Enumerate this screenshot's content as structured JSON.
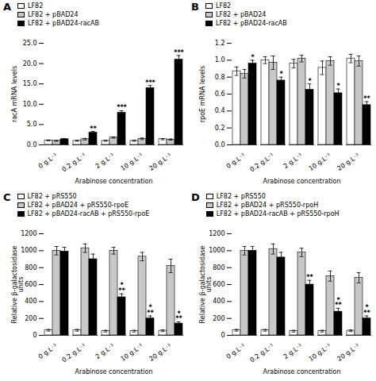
{
  "chart_data": [
    {
      "type": "bar",
      "title": "A",
      "xlabel": "Arabinose concentration",
      "ylabel": "racA mRNA levels",
      "categories": [
        "0 g.L⁻¹",
        "0.2 g.L⁻¹",
        "2 g.L⁻¹",
        "10 g.L⁻¹",
        "20 g.L⁻¹"
      ],
      "series": [
        {
          "name": "LF82",
          "color": "white",
          "values": [
            1.1,
            1.0,
            1.0,
            1.0,
            1.4
          ],
          "errors": [
            0.1,
            0.1,
            0.1,
            0.1,
            0.15
          ]
        },
        {
          "name": "LF82 + pBAD24",
          "color": "#c8c8c8",
          "values": [
            1.0,
            1.4,
            1.8,
            1.5,
            1.3
          ],
          "errors": [
            0.1,
            0.2,
            0.15,
            0.2,
            0.15
          ]
        },
        {
          "name": "LF82 + pBAD24-racAB",
          "color": "black",
          "values": [
            1.4,
            3.0,
            7.9,
            14.0,
            21.0
          ],
          "errors": [
            0.15,
            0.3,
            0.5,
            0.6,
            1.0
          ]
        }
      ],
      "ylim": [
        0,
        25
      ],
      "yticks": [
        {
          "value": 0,
          "label": "0.0"
        },
        {
          "value": 5,
          "label": "5.0"
        },
        {
          "value": 10,
          "label": "10.0"
        },
        {
          "value": 15,
          "label": "15.0"
        },
        {
          "value": 20,
          "label": "20.0"
        },
        {
          "value": 25,
          "label": "25.0"
        }
      ],
      "annotations": [
        {
          "category": "0.2 g.L⁻¹",
          "series": "LF82 + pBAD24-racAB",
          "text": "**"
        },
        {
          "category": "2 g.L⁻¹",
          "series": "LF82 + pBAD24-racAB",
          "text": "***"
        },
        {
          "category": "10 g.L⁻¹",
          "series": "LF82 + pBAD24-racAB",
          "text": "***"
        },
        {
          "category": "20 g.L⁻¹",
          "series": "LF82 + pBAD24-racAB",
          "text": "***"
        }
      ]
    },
    {
      "type": "bar",
      "title": "B",
      "xlabel": "Arabinose concentration",
      "ylabel": "rpoE mRNA levels",
      "categories": [
        "0 g.L⁻¹",
        "0.2 g.L⁻¹",
        "2 g.L⁻¹",
        "10 g.L⁻¹",
        "20 g.L⁻¹"
      ],
      "series": [
        {
          "name": "LF82",
          "color": "white",
          "values": [
            0.87,
            1.0,
            0.96,
            0.91,
            1.02
          ],
          "errors": [
            0.05,
            0.04,
            0.05,
            0.08,
            0.05
          ]
        },
        {
          "name": "LF82 + pBAD24",
          "color": "#c8c8c8",
          "values": [
            0.84,
            0.97,
            1.02,
            0.99,
            0.99
          ],
          "errors": [
            0.05,
            0.08,
            0.04,
            0.05,
            0.06
          ]
        },
        {
          "name": "LF82 + pBAD24-racAB",
          "color": "black",
          "values": [
            0.96,
            0.76,
            0.65,
            0.61,
            0.47
          ],
          "errors": [
            0.04,
            0.04,
            0.07,
            0.05,
            0.04
          ]
        }
      ],
      "ylim": [
        0,
        1.2
      ],
      "yticks": [
        {
          "value": 0,
          "label": "0.0"
        },
        0.2,
        0.4,
        0.6,
        0.8,
        {
          "value": 1,
          "label": "1.0"
        },
        1.2
      ],
      "annotations": [
        {
          "category": "0 g.L⁻¹",
          "series": "LF82 + pBAD24-racAB",
          "text": "*"
        },
        {
          "category": "0.2 g.L⁻¹",
          "series": "LF82 + pBAD24-racAB",
          "text": "*"
        },
        {
          "category": "2 g.L⁻¹",
          "series": "LF82 + pBAD24-racAB",
          "text": "*"
        },
        {
          "category": "10 g.L⁻¹",
          "series": "LF82 + pBAD24-racAB",
          "text": "*"
        },
        {
          "category": "20 g.L⁻¹",
          "series": "LF82 + pBAD24-racAB",
          "text": "**"
        }
      ]
    },
    {
      "type": "bar",
      "title": "C",
      "xlabel": "Arabinose concentration",
      "ylabel": "Relative β-galactosidase\nunits",
      "categories": [
        "0 g.L⁻¹",
        "0.2 g.L⁻¹",
        "2 g.L⁻¹",
        "10 g.L⁻¹",
        "20 g.L⁻¹"
      ],
      "series": [
        {
          "name": "LF82 + pRS550",
          "color": "white",
          "values": [
            60,
            60,
            50,
            50,
            55
          ],
          "errors": [
            10,
            10,
            10,
            10,
            10
          ]
        },
        {
          "name": "LF82 + pBAD24 + pRS550-rpoE",
          "color": "#c8c8c8",
          "values": [
            1000,
            1030,
            1000,
            930,
            820
          ],
          "errors": [
            50,
            50,
            40,
            50,
            80
          ]
        },
        {
          "name": "LF82 + pBAD24-racAB + pRS550-rpoE",
          "color": "black",
          "values": [
            990,
            900,
            450,
            200,
            140
          ],
          "errors": [
            50,
            60,
            40,
            30,
            20
          ]
        }
      ],
      "ylim": [
        0,
        1200
      ],
      "yticks": [
        0,
        200,
        400,
        600,
        800,
        1000,
        1200
      ],
      "annotations": [
        {
          "category": "2 g.L⁻¹",
          "series": "LF82 + pBAD24-racAB + pRS550-rpoE",
          "text": "*\n**"
        },
        {
          "category": "10 g.L⁻¹",
          "series": "LF82 + pBAD24-racAB + pRS550-rpoE",
          "text": "*\n**"
        },
        {
          "category": "20 g.L⁻¹",
          "series": "LF82 + pBAD24-racAB + pRS550-rpoE",
          "text": "*\n**"
        }
      ]
    },
    {
      "type": "bar",
      "title": "D",
      "xlabel": "Arabinose concentration",
      "ylabel": "Relative β-galactosidase\nunits",
      "categories": [
        "0 g.L⁻¹",
        "0.2 g.L⁻¹",
        "2 g.L⁻¹",
        "10 g.L⁻¹",
        "20 g.L⁻¹"
      ],
      "series": [
        {
          "name": "LF82 + pRS550",
          "color": "white",
          "values": [
            60,
            60,
            50,
            50,
            55
          ],
          "errors": [
            10,
            10,
            10,
            10,
            10
          ]
        },
        {
          "name": "LF82 + pBAD24 + pRS550-rpoH",
          "color": "#c8c8c8",
          "values": [
            1000,
            1020,
            980,
            700,
            680
          ],
          "errors": [
            50,
            60,
            50,
            60,
            60
          ]
        },
        {
          "name": "LF82 + pBAD24-racAB + pRS550-rpoH",
          "color": "black",
          "values": [
            1000,
            920,
            600,
            280,
            200
          ],
          "errors": [
            50,
            60,
            50,
            40,
            30
          ]
        }
      ],
      "ylim": [
        0,
        1200
      ],
      "yticks": [
        0,
        200,
        400,
        600,
        800,
        1000,
        1200
      ],
      "annotations": [
        {
          "category": "2 g.L⁻¹",
          "series": "LF82 + pBAD24-racAB + pRS550-rpoH",
          "text": "**"
        },
        {
          "category": "10 g.L⁻¹",
          "series": "LF82 + pBAD24-racAB + pRS550-rpoH",
          "text": "*\n**"
        },
        {
          "category": "20 g.L⁻¹",
          "series": "LF82 + pBAD24-racAB + pRS550-rpoH",
          "text": "*\n**"
        }
      ]
    }
  ]
}
